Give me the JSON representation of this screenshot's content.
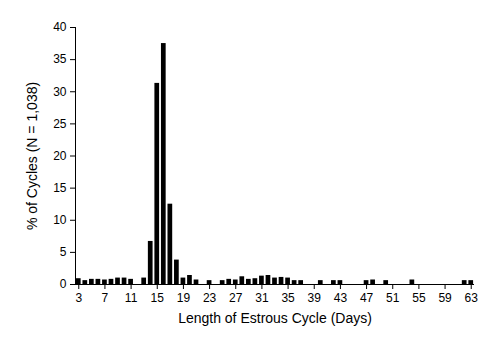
{
  "chart_data": {
    "type": "bar",
    "x_label": "Length of Estrous Cycle (Days)",
    "y_label": "% of Cycles (N = 1,038)",
    "x": [
      3,
      4,
      5,
      6,
      7,
      8,
      9,
      10,
      11,
      12,
      13,
      14,
      15,
      16,
      17,
      18,
      19,
      20,
      21,
      22,
      23,
      24,
      25,
      26,
      27,
      28,
      29,
      30,
      31,
      32,
      33,
      34,
      35,
      36,
      37,
      38,
      39,
      40,
      41,
      42,
      43,
      44,
      45,
      46,
      47,
      48,
      49,
      50,
      51,
      52,
      53,
      54,
      55,
      56,
      57,
      58,
      59,
      60,
      61,
      62,
      63
    ],
    "values": [
      0.9,
      0.6,
      0.8,
      0.8,
      0.7,
      0.8,
      1.0,
      1.0,
      0.8,
      0,
      1.0,
      6.7,
      31.3,
      37.5,
      12.5,
      3.8,
      1.0,
      1.4,
      0.7,
      0,
      0.6,
      0,
      0.6,
      0.8,
      0.7,
      1.2,
      0.8,
      0.9,
      1.3,
      1.4,
      1.0,
      1.1,
      1.0,
      0.6,
      0.6,
      0,
      0,
      0.6,
      0,
      0.6,
      0.6,
      0,
      0,
      0,
      0.6,
      0.7,
      0,
      0.6,
      0,
      0,
      0,
      0.7,
      0,
      0,
      0,
      0,
      0,
      0,
      0,
      0.6,
      0.6
    ],
    "color": "#000000",
    "xlim": [
      2.5,
      63.5
    ],
    "xticks": [
      3,
      7,
      11,
      15,
      19,
      23,
      27,
      31,
      35,
      39,
      43,
      47,
      51,
      55,
      59,
      63
    ],
    "ylim": [
      0,
      40
    ],
    "yticks": [
      0,
      5,
      10,
      15,
      20,
      25,
      30,
      35,
      40
    ]
  }
}
